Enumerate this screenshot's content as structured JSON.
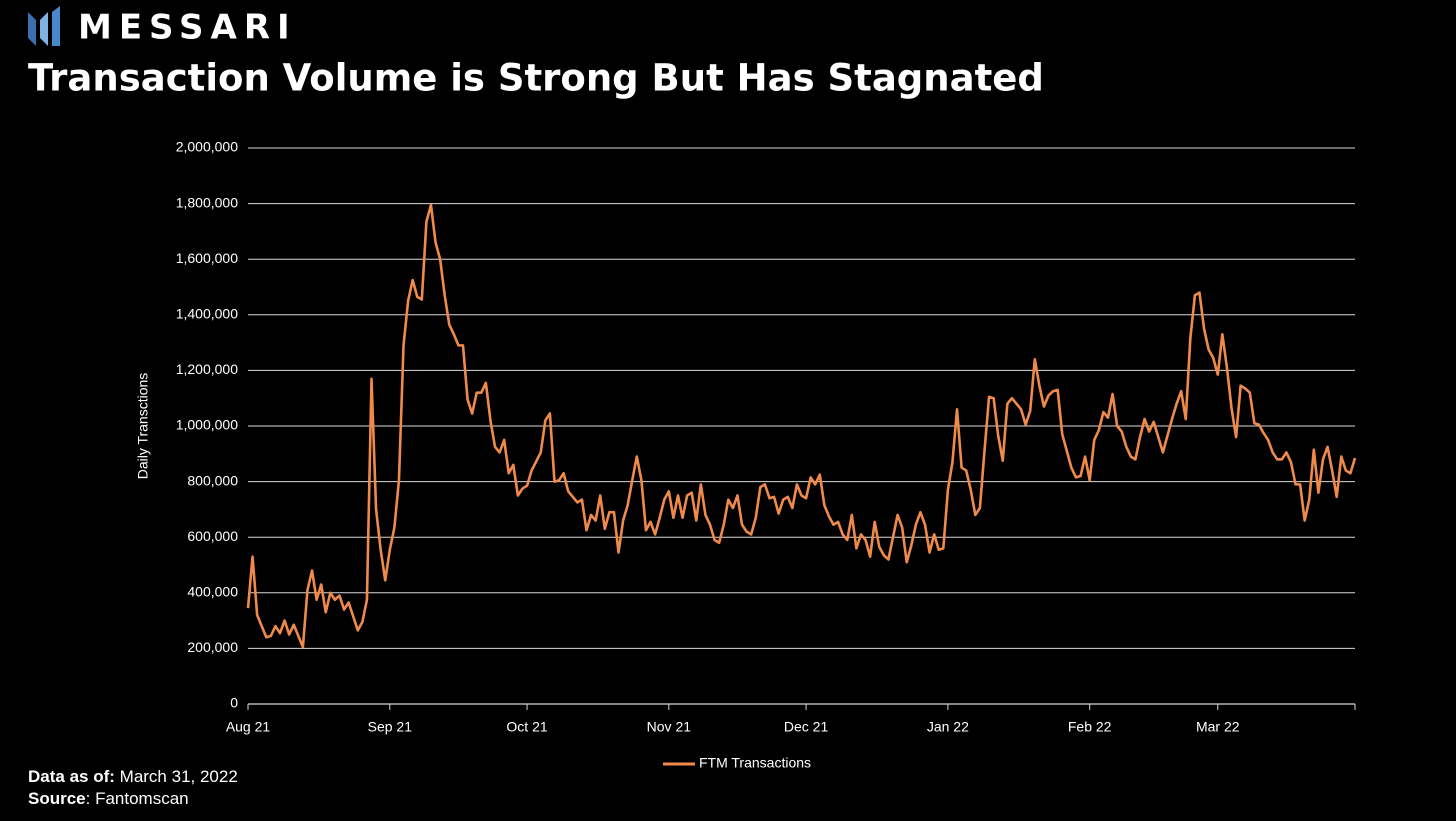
{
  "header": {
    "brand": "MESSARI"
  },
  "chart_data": {
    "type": "line",
    "title": "Transaction Volume is Strong But Has Stagnated",
    "y_label": "Daily Transctions",
    "xlim": [
      0,
      242
    ],
    "xticks": [
      {
        "value": 0,
        "label": "Aug 21"
      },
      {
        "value": 31,
        "label": "Sep 21"
      },
      {
        "value": 61,
        "label": "Oct 21"
      },
      {
        "value": 92,
        "label": "Nov 21"
      },
      {
        "value": 122,
        "label": "Dec 21"
      },
      {
        "value": 153,
        "label": "Jan 22"
      },
      {
        "value": 184,
        "label": "Feb 22"
      },
      {
        "value": 212,
        "label": "Mar 22"
      }
    ],
    "ylim": [
      0,
      2000000
    ],
    "yticks": [
      0,
      {
        "value": 200000,
        "label": "200,000"
      },
      {
        "value": 400000,
        "label": "400,000"
      },
      {
        "value": 600000,
        "label": "600,000"
      },
      {
        "value": 800000,
        "label": "800,000"
      },
      {
        "value": 1000000,
        "label": "1,000,000"
      },
      {
        "value": 1200000,
        "label": "1,200,000"
      },
      {
        "value": 1400000,
        "label": "1,400,000"
      },
      {
        "value": 1600000,
        "label": "1,600,000"
      },
      {
        "value": 1800000,
        "label": "1,800,000"
      },
      {
        "value": 2000000,
        "label": "2,000,000"
      }
    ],
    "grid": true,
    "legend": "bottom",
    "x": [
      0,
      1,
      2,
      4,
      5,
      6,
      7,
      8,
      9,
      10,
      12,
      13,
      14,
      15,
      16,
      17,
      18,
      19,
      20,
      21,
      22,
      24,
      25,
      26,
      27,
      28,
      29,
      30,
      31,
      32,
      33,
      34,
      35,
      36,
      37,
      38,
      39,
      40,
      41,
      42,
      43,
      44,
      45,
      46,
      47,
      48,
      49,
      50,
      51,
      52,
      53,
      54,
      55,
      56,
      57,
      58,
      59,
      60,
      61,
      62,
      64,
      65,
      66,
      67,
      68,
      69,
      70,
      72,
      73,
      74,
      75,
      76,
      77,
      78,
      79,
      80,
      81,
      82,
      83,
      84,
      85,
      86,
      87,
      88,
      89,
      90,
      91,
      92,
      93,
      94,
      95,
      96,
      97,
      98,
      99,
      100,
      101,
      102,
      103,
      104,
      105,
      106,
      107,
      108,
      109,
      110,
      111,
      112,
      113,
      114,
      115,
      116,
      117,
      118,
      119,
      120,
      121,
      122,
      123,
      124,
      125,
      126,
      127,
      128,
      129,
      130,
      131,
      132,
      133,
      134,
      135,
      136,
      137,
      138,
      139,
      140,
      141,
      142,
      143,
      144,
      145,
      146,
      147,
      148,
      149,
      150,
      151,
      152,
      153,
      154,
      155,
      156,
      157,
      158,
      159,
      160,
      161,
      162,
      163,
      164,
      165,
      166,
      167,
      168,
      169,
      170,
      171,
      172,
      173,
      174,
      175,
      176,
      177,
      178,
      179,
      180,
      181,
      182,
      183,
      184,
      185,
      186,
      187,
      188,
      189,
      190,
      191,
      192,
      193,
      194,
      195,
      196,
      197,
      198,
      199,
      200,
      201,
      202,
      203,
      204,
      205,
      206,
      207,
      208,
      209,
      210,
      211,
      212,
      213,
      214,
      215,
      216,
      217,
      218,
      219,
      220,
      221,
      222,
      223,
      224,
      225,
      226,
      227,
      228,
      229,
      230,
      231,
      232,
      233,
      234,
      235,
      236,
      237,
      238,
      239,
      240,
      241,
      242
    ],
    "series": [
      {
        "name": "FTM Transactions",
        "color": "#f08a4b",
        "values": [
          345000,
          530000,
          320000,
          240000,
          245000,
          280000,
          255000,
          300000,
          250000,
          285000,
          205000,
          410000,
          480000,
          375000,
          430000,
          330000,
          400000,
          375000,
          390000,
          340000,
          365000,
          265000,
          295000,
          375000,
          1170000,
          700000,
          555000,
          445000,
          555000,
          635000,
          805000,
          1290000,
          1450000,
          1525000,
          1465000,
          1455000,
          1735000,
          1795000,
          1660000,
          1600000,
          1470000,
          1365000,
          1330000,
          1290000,
          1290000,
          1095000,
          1045000,
          1120000,
          1120000,
          1155000,
          1020000,
          925000,
          905000,
          950000,
          830000,
          860000,
          750000,
          775000,
          785000,
          840000,
          905000,
          1020000,
          1045000,
          800000,
          805000,
          830000,
          765000,
          725000,
          735000,
          625000,
          680000,
          660000,
          750000,
          630000,
          690000,
          690000,
          545000,
          660000,
          715000,
          805000,
          890000,
          805000,
          625000,
          655000,
          610000,
          670000,
          735000,
          765000,
          670000,
          750000,
          670000,
          750000,
          760000,
          660000,
          790000,
          680000,
          645000,
          590000,
          580000,
          645000,
          735000,
          705000,
          750000,
          645000,
          620000,
          610000,
          670000,
          780000,
          790000,
          740000,
          745000,
          685000,
          735000,
          745000,
          705000,
          790000,
          750000,
          740000,
          815000,
          790000,
          825000,
          715000,
          675000,
          645000,
          655000,
          610000,
          590000,
          680000,
          560000,
          610000,
          590000,
          530000,
          655000,
          565000,
          535000,
          520000,
          600000,
          680000,
          635000,
          510000,
          570000,
          645000,
          690000,
          645000,
          545000,
          610000,
          555000,
          560000,
          770000,
          870000,
          1060000,
          850000,
          840000,
          770000,
          680000,
          705000,
          910000,
          1105000,
          1100000,
          965000,
          875000,
          1080000,
          1100000,
          1080000,
          1060000,
          1005000,
          1055000,
          1240000,
          1145000,
          1070000,
          1110000,
          1125000,
          1130000,
          970000,
          910000,
          850000,
          815000,
          820000,
          890000,
          805000,
          950000,
          985000,
          1050000,
          1030000,
          1115000,
          1000000,
          980000,
          925000,
          890000,
          880000,
          960000,
          1025000,
          980000,
          1015000,
          960000,
          905000,
          965000,
          1025000,
          1080000,
          1125000,
          1025000,
          1315000,
          1470000,
          1480000,
          1350000,
          1275000,
          1245000,
          1185000,
          1330000,
          1210000,
          1065000,
          960000,
          1145000,
          1135000,
          1120000,
          1010000,
          1005000,
          975000,
          950000,
          905000,
          880000,
          880000,
          905000,
          870000,
          790000,
          790000,
          660000,
          735000,
          915000,
          760000,
          880000,
          925000,
          840000,
          745000,
          890000,
          840000,
          830000,
          885000
        ]
      }
    ]
  },
  "footer": {
    "as_of_label": "Data as of:",
    "as_of": "March 31, 2022",
    "source_label": "Source",
    "source": ": Fantomscan"
  }
}
